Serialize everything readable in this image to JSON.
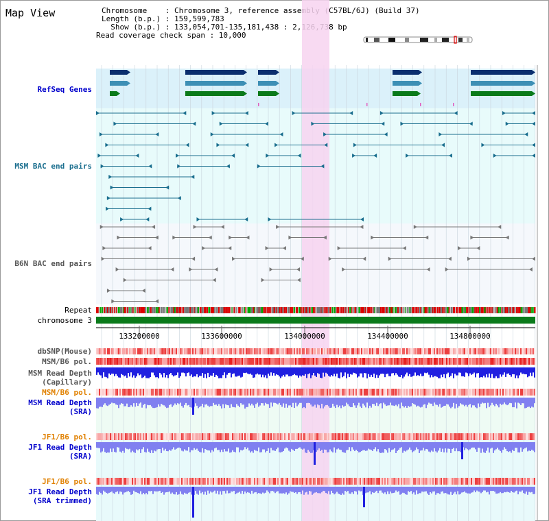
{
  "title": "Map View",
  "info": {
    "chromosome": "Chromosome    : Chromosome 3, reference assembly (C57BL/6J) (Build 37)",
    "length": "Length (b.p.) : 159,599,783",
    "show": "  Show (b.p.) : 133,054,701-135,181,438 : 2,126,738 bp",
    "coverage": "Read coverage check span : 10,000"
  },
  "tracks": {
    "refseq": "RefSeq Genes",
    "msm_bac": "MSM BAC end pairs",
    "b6n_bac": "B6N BAC end pairs",
    "repeat": "Repeat",
    "chromosome": "chromosome 3",
    "dbsnp": "dbSNP(Mouse)",
    "msm_pol": "MSM/B6 pol.",
    "msm_depth_cap_1": "MSM Read Depth",
    "msm_depth_cap_2": "(Capillary)",
    "msm_pol_2": "MSM/B6 pol.",
    "msm_depth_sra_1": "MSM Read Depth",
    "msm_depth_sra_2": "(SRA)",
    "jf1_pol": "JF1/B6 pol.",
    "jf1_depth_sra_1": "JF1 Read Depth",
    "jf1_depth_sra_2": "(SRA)",
    "jf1_pol_2": "JF1/B6 pol.",
    "jf1_trim_1": "JF1 Read Depth",
    "jf1_trim_2": "(SRA trimmed)"
  },
  "axis": {
    "ticks": [
      "133200000",
      "133600000",
      "134000000",
      "134400000",
      "134800000"
    ]
  },
  "colors": {
    "refseq_bg": "#dbf1fa",
    "bac_bg": "#e8fbfb",
    "b6n_bg": "#f5f8fc",
    "highlight": "#f7d4f0",
    "gene_dark": "#0a2e6e",
    "gene_mid": "#3d8fb5",
    "gene_green": "#0a7a1a",
    "msm_bac": "#1a6e8e",
    "b6n_bac": "#777777",
    "chrom": "#0a7a1a",
    "depth_dark": "#2020e0",
    "depth_light": "#8080f0",
    "label_blue": "#0000cc",
    "label_teal": "#1a6e8e",
    "label_orange": "#e08000"
  }
}
